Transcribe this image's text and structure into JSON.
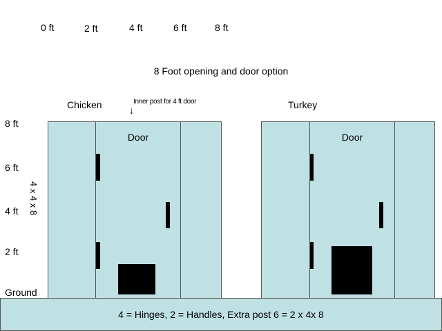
{
  "scale_top": [
    "0 ft",
    "2 ft",
    "4 ft",
    "6 ft",
    "8 ft"
  ],
  "title": "8 Foot opening and door option",
  "y_labels": [
    "8 ft",
    "6 ft",
    "4 ft",
    "2 ft",
    "Ground"
  ],
  "post_size_label": "4 x 4 x 8",
  "panels": {
    "chicken": {
      "label": "Chicken",
      "door_label": "Door"
    },
    "turkey": {
      "label": "Turkey",
      "door_label": "Door"
    }
  },
  "annotation": {
    "text": "Inner post for 4 ft door",
    "arrow": "↓"
  },
  "legend": "4 = Hinges, 2 = Handles, Extra post 6 = 2 x 4x 8",
  "colors": {
    "pen_fill": "#bfe1e3",
    "outline": "#555555",
    "marker": "#000000"
  }
}
